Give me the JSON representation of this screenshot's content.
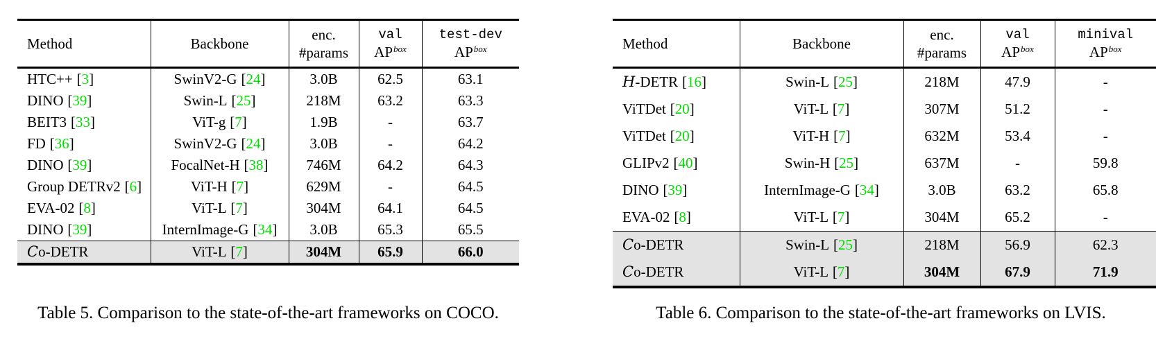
{
  "colors": {
    "citation": "#00e000",
    "highlight_bg": "#e3e3e3",
    "rule": "#000000"
  },
  "cite": {
    "open": "[",
    "close": "]"
  },
  "ap": {
    "base": "AP",
    "sup": "box"
  },
  "tables": [
    {
      "caption": "Table 5. Comparison to the state-of-the-art frameworks on COCO.",
      "header": {
        "method": "Method",
        "backbone": "Backbone",
        "cols": [
          {
            "line1": "enc.",
            "line2_text": "#params"
          },
          {
            "line1": "val"
          },
          {
            "line1": "test-dev"
          }
        ]
      },
      "rows": [
        {
          "method": {
            "name": "HTC++",
            "cite": "3"
          },
          "backbone": {
            "name": "SwinV2-G",
            "cite": "24"
          },
          "params": "3.0B",
          "v1": "62.5",
          "v2": "63.1"
        },
        {
          "method": {
            "name": "DINO",
            "cite": "39"
          },
          "backbone": {
            "name": "Swin-L",
            "cite": "25"
          },
          "params": "218M",
          "v1": "63.2",
          "v2": "63.3"
        },
        {
          "method": {
            "name": "BEIT3",
            "cite": "33"
          },
          "backbone": {
            "name": "ViT-g",
            "cite": "7"
          },
          "params": "1.9B",
          "v1": "-",
          "v2": "63.7"
        },
        {
          "method": {
            "name": "FD",
            "cite": "36"
          },
          "backbone": {
            "name": "SwinV2-G",
            "cite": "24"
          },
          "params": "3.0B",
          "v1": "-",
          "v2": "64.2"
        },
        {
          "method": {
            "name": "DINO",
            "cite": "39"
          },
          "backbone": {
            "name": "FocalNet-H",
            "cite": "38"
          },
          "params": "746M",
          "v1": "64.2",
          "v2": "64.3"
        },
        {
          "method": {
            "name": "Group DETRv2",
            "cite": "6"
          },
          "backbone": {
            "name": "ViT-H",
            "cite": "7"
          },
          "params": "629M",
          "v1": "-",
          "v2": "64.5"
        },
        {
          "method": {
            "name": "EVA-02",
            "cite": "8"
          },
          "backbone": {
            "name": "ViT-L",
            "cite": "7"
          },
          "params": "304M",
          "v1": "64.1",
          "v2": "64.5"
        },
        {
          "method": {
            "name": "DINO",
            "cite": "39"
          },
          "backbone": {
            "name": "InternImage-G",
            "cite": "34"
          },
          "params": "3.0B",
          "v1": "65.3",
          "v2": "65.5"
        },
        {
          "method": {
            "script_letter": "C",
            "name": "o-DETR"
          },
          "backbone": {
            "name": "ViT-L",
            "cite": "7"
          },
          "params": "304M",
          "v1": "65.9",
          "v2": "66.0",
          "highlight": true,
          "rule_above": true,
          "bold_vals": true
        }
      ]
    },
    {
      "caption": "Table 6. Comparison to the state-of-the-art frameworks on LVIS.",
      "header": {
        "method": "Method",
        "backbone": "Backbone",
        "cols": [
          {
            "line1": "enc.",
            "line2_text": "#params"
          },
          {
            "line1": "val"
          },
          {
            "line1": "minival"
          }
        ]
      },
      "rows": [
        {
          "method": {
            "script_letter": "H",
            "name": "-DETR",
            "cite": "16"
          },
          "backbone": {
            "name": "Swin-L",
            "cite": "25"
          },
          "params": "218M",
          "v1": "47.9",
          "v2": "-"
        },
        {
          "method": {
            "name": "ViTDet",
            "cite": "20"
          },
          "backbone": {
            "name": "ViT-L",
            "cite": "7"
          },
          "params": "307M",
          "v1": "51.2",
          "v2": "-"
        },
        {
          "method": {
            "name": "ViTDet",
            "cite": "20"
          },
          "backbone": {
            "name": "ViT-H",
            "cite": "7"
          },
          "params": "632M",
          "v1": "53.4",
          "v2": "-"
        },
        {
          "method": {
            "name": "GLIPv2",
            "cite": "40"
          },
          "backbone": {
            "name": "Swin-H",
            "cite": "25"
          },
          "params": "637M",
          "v1": "-",
          "v2": "59.8"
        },
        {
          "method": {
            "name": "DINO",
            "cite": "39"
          },
          "backbone": {
            "name": "InternImage-G",
            "cite": "34"
          },
          "params": "3.0B",
          "v1": "63.2",
          "v2": "65.8"
        },
        {
          "method": {
            "name": "EVA-02",
            "cite": "8"
          },
          "backbone": {
            "name": "ViT-L",
            "cite": "7"
          },
          "params": "304M",
          "v1": "65.2",
          "v2": "-"
        },
        {
          "method": {
            "script_letter": "C",
            "name": "o-DETR"
          },
          "backbone": {
            "name": "Swin-L",
            "cite": "25"
          },
          "params": "218M",
          "v1": "56.9",
          "v2": "62.3",
          "highlight": true,
          "rule_above": true
        },
        {
          "method": {
            "script_letter": "C",
            "name": "o-DETR"
          },
          "backbone": {
            "name": "ViT-L",
            "cite": "7"
          },
          "params": "304M",
          "v1": "67.9",
          "v2": "71.9",
          "highlight": true,
          "bold_vals": true
        }
      ]
    }
  ]
}
